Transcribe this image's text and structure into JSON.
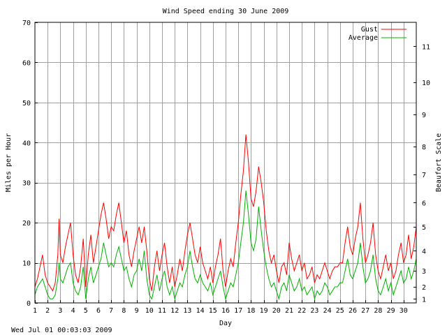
{
  "chart_data": {
    "type": "line",
    "title": "Wind Speed ending 30 June 2009",
    "xlabel": "Day",
    "ylabel": "Miles per Hour",
    "y2label": "Beaufort Scale",
    "footer": "Wed Jul 01 00:03:03 2009",
    "xlim": [
      1,
      31
    ],
    "ylim": [
      0,
      70
    ],
    "x_ticks": [
      1,
      2,
      3,
      4,
      5,
      6,
      7,
      8,
      9,
      10,
      11,
      12,
      13,
      14,
      15,
      16,
      17,
      18,
      19,
      20,
      21,
      22,
      23,
      24,
      25,
      26,
      27,
      28,
      29,
      30
    ],
    "y_ticks": [
      0,
      10,
      20,
      30,
      40,
      50,
      60,
      70
    ],
    "beaufort_ticks": [
      {
        "label": "1",
        "mph": 1
      },
      {
        "label": "2",
        "mph": 4
      },
      {
        "label": "3",
        "mph": 8
      },
      {
        "label": "4",
        "mph": 13
      },
      {
        "label": "5",
        "mph": 19
      },
      {
        "label": "6",
        "mph": 25
      },
      {
        "label": "7",
        "mph": 32
      },
      {
        "label": "8",
        "mph": 39
      },
      {
        "label": "9",
        "mph": 47
      },
      {
        "label": "10",
        "mph": 55
      },
      {
        "label": "11",
        "mph": 64
      }
    ],
    "grid": true,
    "legend_position": "top-right",
    "series": [
      {
        "name": "Gust",
        "color": "#ff0000",
        "points": [
          [
            1.0,
            4
          ],
          [
            1.2,
            6
          ],
          [
            1.4,
            9
          ],
          [
            1.6,
            12
          ],
          [
            1.8,
            7
          ],
          [
            2.0,
            5
          ],
          [
            2.2,
            4
          ],
          [
            2.4,
            3
          ],
          [
            2.6,
            5
          ],
          [
            2.8,
            12
          ],
          [
            2.9,
            21
          ],
          [
            3.0,
            12
          ],
          [
            3.2,
            10
          ],
          [
            3.4,
            14
          ],
          [
            3.6,
            17
          ],
          [
            3.8,
            20
          ],
          [
            4.0,
            12
          ],
          [
            4.2,
            7
          ],
          [
            4.4,
            5
          ],
          [
            4.6,
            9
          ],
          [
            4.8,
            16
          ],
          [
            5.0,
            4
          ],
          [
            5.2,
            12
          ],
          [
            5.4,
            17
          ],
          [
            5.6,
            10
          ],
          [
            5.8,
            14
          ],
          [
            6.0,
            18
          ],
          [
            6.2,
            22
          ],
          [
            6.4,
            25
          ],
          [
            6.6,
            21
          ],
          [
            6.8,
            16
          ],
          [
            7.0,
            19
          ],
          [
            7.2,
            18
          ],
          [
            7.4,
            22
          ],
          [
            7.6,
            25
          ],
          [
            7.8,
            20
          ],
          [
            8.0,
            15
          ],
          [
            8.2,
            18
          ],
          [
            8.4,
            12
          ],
          [
            8.6,
            9
          ],
          [
            8.8,
            13
          ],
          [
            9.0,
            16
          ],
          [
            9.2,
            19
          ],
          [
            9.4,
            15
          ],
          [
            9.6,
            19
          ],
          [
            9.8,
            13
          ],
          [
            10.0,
            6
          ],
          [
            10.2,
            3
          ],
          [
            10.4,
            9
          ],
          [
            10.6,
            13
          ],
          [
            10.8,
            8
          ],
          [
            11.0,
            12
          ],
          [
            11.2,
            15
          ],
          [
            11.4,
            9
          ],
          [
            11.6,
            5
          ],
          [
            11.8,
            9
          ],
          [
            12.0,
            4
          ],
          [
            12.2,
            7
          ],
          [
            12.4,
            11
          ],
          [
            12.6,
            8
          ],
          [
            12.8,
            13
          ],
          [
            13.0,
            17
          ],
          [
            13.2,
            20
          ],
          [
            13.4,
            16
          ],
          [
            13.6,
            12
          ],
          [
            13.8,
            10
          ],
          [
            14.0,
            14
          ],
          [
            14.2,
            10
          ],
          [
            14.4,
            8
          ],
          [
            14.6,
            6
          ],
          [
            14.8,
            9
          ],
          [
            15.0,
            5
          ],
          [
            15.2,
            9
          ],
          [
            15.4,
            12
          ],
          [
            15.6,
            16
          ],
          [
            15.8,
            8
          ],
          [
            16.0,
            4
          ],
          [
            16.2,
            8
          ],
          [
            16.4,
            11
          ],
          [
            16.6,
            9
          ],
          [
            16.8,
            15
          ],
          [
            17.0,
            20
          ],
          [
            17.2,
            27
          ],
          [
            17.4,
            33
          ],
          [
            17.6,
            42
          ],
          [
            17.8,
            35
          ],
          [
            18.0,
            26
          ],
          [
            18.2,
            24
          ],
          [
            18.4,
            28
          ],
          [
            18.6,
            34
          ],
          [
            18.8,
            30
          ],
          [
            19.0,
            25
          ],
          [
            19.2,
            18
          ],
          [
            19.4,
            13
          ],
          [
            19.6,
            10
          ],
          [
            19.8,
            12
          ],
          [
            20.0,
            8
          ],
          [
            20.2,
            5
          ],
          [
            20.4,
            9
          ],
          [
            20.6,
            10
          ],
          [
            20.8,
            7
          ],
          [
            21.0,
            15
          ],
          [
            21.2,
            11
          ],
          [
            21.4,
            8
          ],
          [
            21.6,
            10
          ],
          [
            21.8,
            12
          ],
          [
            22.0,
            8
          ],
          [
            22.2,
            10
          ],
          [
            22.4,
            6
          ],
          [
            22.6,
            7
          ],
          [
            22.8,
            9
          ],
          [
            23.0,
            5
          ],
          [
            23.2,
            7
          ],
          [
            23.4,
            6
          ],
          [
            23.6,
            8
          ],
          [
            23.8,
            10
          ],
          [
            24.0,
            8
          ],
          [
            24.2,
            6
          ],
          [
            24.4,
            8
          ],
          [
            24.6,
            9
          ],
          [
            24.8,
            9
          ],
          [
            25.0,
            10
          ],
          [
            25.2,
            10
          ],
          [
            25.4,
            15
          ],
          [
            25.6,
            19
          ],
          [
            25.8,
            14
          ],
          [
            26.0,
            12
          ],
          [
            26.2,
            16
          ],
          [
            26.4,
            19
          ],
          [
            26.6,
            25
          ],
          [
            26.8,
            16
          ],
          [
            27.0,
            10
          ],
          [
            27.2,
            12
          ],
          [
            27.4,
            15
          ],
          [
            27.6,
            20
          ],
          [
            27.8,
            12
          ],
          [
            28.0,
            8
          ],
          [
            28.2,
            6
          ],
          [
            28.4,
            9
          ],
          [
            28.6,
            12
          ],
          [
            28.8,
            8
          ],
          [
            29.0,
            10
          ],
          [
            29.2,
            6
          ],
          [
            29.4,
            8
          ],
          [
            29.6,
            12
          ],
          [
            29.8,
            15
          ],
          [
            30.0,
            10
          ],
          [
            30.2,
            12
          ],
          [
            30.4,
            17
          ],
          [
            30.6,
            11
          ],
          [
            30.8,
            14
          ],
          [
            31.0,
            19
          ]
        ]
      },
      {
        "name": "Average",
        "color": "#00b000",
        "points": [
          [
            1.0,
            2
          ],
          [
            1.2,
            4
          ],
          [
            1.4,
            5
          ],
          [
            1.6,
            6
          ],
          [
            1.8,
            4
          ],
          [
            2.0,
            2
          ],
          [
            2.2,
            1
          ],
          [
            2.4,
            1
          ],
          [
            2.6,
            2
          ],
          [
            2.8,
            6
          ],
          [
            2.9,
            10
          ],
          [
            3.0,
            6
          ],
          [
            3.2,
            5
          ],
          [
            3.4,
            7
          ],
          [
            3.6,
            9
          ],
          [
            3.8,
            10
          ],
          [
            4.0,
            5
          ],
          [
            4.2,
            3
          ],
          [
            4.4,
            2
          ],
          [
            4.6,
            4
          ],
          [
            4.8,
            9
          ],
          [
            5.0,
            1
          ],
          [
            5.2,
            6
          ],
          [
            5.4,
            9
          ],
          [
            5.6,
            5
          ],
          [
            5.8,
            7
          ],
          [
            6.0,
            9
          ],
          [
            6.2,
            11
          ],
          [
            6.4,
            15
          ],
          [
            6.6,
            12
          ],
          [
            6.8,
            9
          ],
          [
            7.0,
            10
          ],
          [
            7.2,
            9
          ],
          [
            7.4,
            12
          ],
          [
            7.6,
            14
          ],
          [
            7.8,
            11
          ],
          [
            8.0,
            8
          ],
          [
            8.2,
            9
          ],
          [
            8.4,
            6
          ],
          [
            8.6,
            4
          ],
          [
            8.8,
            7
          ],
          [
            9.0,
            8
          ],
          [
            9.2,
            11
          ],
          [
            9.4,
            8
          ],
          [
            9.6,
            13
          ],
          [
            9.8,
            6
          ],
          [
            10.0,
            2
          ],
          [
            10.2,
            1
          ],
          [
            10.4,
            4
          ],
          [
            10.6,
            7
          ],
          [
            10.8,
            3
          ],
          [
            11.0,
            6
          ],
          [
            11.2,
            8
          ],
          [
            11.4,
            4
          ],
          [
            11.6,
            2
          ],
          [
            11.8,
            4
          ],
          [
            12.0,
            1
          ],
          [
            12.2,
            3
          ],
          [
            12.4,
            5
          ],
          [
            12.6,
            4
          ],
          [
            12.8,
            7
          ],
          [
            13.0,
            9
          ],
          [
            13.2,
            13
          ],
          [
            13.4,
            9
          ],
          [
            13.6,
            6
          ],
          [
            13.8,
            5
          ],
          [
            14.0,
            7
          ],
          [
            14.2,
            5
          ],
          [
            14.4,
            4
          ],
          [
            14.6,
            3
          ],
          [
            14.8,
            5
          ],
          [
            15.0,
            2
          ],
          [
            15.2,
            4
          ],
          [
            15.4,
            6
          ],
          [
            15.6,
            8
          ],
          [
            15.8,
            4
          ],
          [
            16.0,
            1
          ],
          [
            16.2,
            3
          ],
          [
            16.4,
            5
          ],
          [
            16.6,
            4
          ],
          [
            16.8,
            7
          ],
          [
            17.0,
            10
          ],
          [
            17.2,
            15
          ],
          [
            17.4,
            20
          ],
          [
            17.6,
            28
          ],
          [
            17.8,
            22
          ],
          [
            18.0,
            15
          ],
          [
            18.2,
            13
          ],
          [
            18.4,
            16
          ],
          [
            18.6,
            24
          ],
          [
            18.8,
            18
          ],
          [
            19.0,
            13
          ],
          [
            19.2,
            9
          ],
          [
            19.4,
            6
          ],
          [
            19.6,
            4
          ],
          [
            19.8,
            5
          ],
          [
            20.0,
            3
          ],
          [
            20.2,
            1
          ],
          [
            20.4,
            4
          ],
          [
            20.6,
            5
          ],
          [
            20.8,
            3
          ],
          [
            21.0,
            7
          ],
          [
            21.2,
            5
          ],
          [
            21.4,
            3
          ],
          [
            21.6,
            4
          ],
          [
            21.8,
            6
          ],
          [
            22.0,
            3
          ],
          [
            22.2,
            4
          ],
          [
            22.4,
            2
          ],
          [
            22.6,
            3
          ],
          [
            22.8,
            4
          ],
          [
            23.0,
            1
          ],
          [
            23.2,
            3
          ],
          [
            23.4,
            2
          ],
          [
            23.6,
            3
          ],
          [
            23.8,
            5
          ],
          [
            24.0,
            4
          ],
          [
            24.2,
            2
          ],
          [
            24.4,
            3
          ],
          [
            24.6,
            4
          ],
          [
            24.8,
            4
          ],
          [
            25.0,
            5
          ],
          [
            25.2,
            5
          ],
          [
            25.4,
            8
          ],
          [
            25.6,
            11
          ],
          [
            25.8,
            7
          ],
          [
            26.0,
            6
          ],
          [
            26.2,
            8
          ],
          [
            26.4,
            10
          ],
          [
            26.6,
            15
          ],
          [
            26.8,
            9
          ],
          [
            27.0,
            5
          ],
          [
            27.2,
            6
          ],
          [
            27.4,
            8
          ],
          [
            27.6,
            12
          ],
          [
            27.8,
            6
          ],
          [
            28.0,
            3
          ],
          [
            28.2,
            2
          ],
          [
            28.4,
            4
          ],
          [
            28.6,
            6
          ],
          [
            28.8,
            3
          ],
          [
            29.0,
            5
          ],
          [
            29.2,
            2
          ],
          [
            29.4,
            4
          ],
          [
            29.6,
            6
          ],
          [
            29.8,
            8
          ],
          [
            30.0,
            5
          ],
          [
            30.2,
            6
          ],
          [
            30.4,
            9
          ],
          [
            30.6,
            6
          ],
          [
            30.8,
            8
          ],
          [
            31.0,
            11
          ]
        ]
      }
    ]
  }
}
